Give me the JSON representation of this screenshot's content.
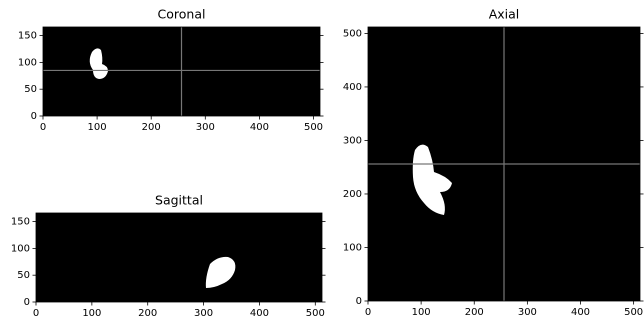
{
  "chart_data": [
    {
      "type": "image",
      "title": "Coronal",
      "xlim": [
        0,
        512
      ],
      "ylim": [
        0,
        166
      ],
      "xticks": [
        0,
        100,
        200,
        300,
        400,
        500
      ],
      "yticks": [
        0,
        50,
        100,
        150
      ],
      "crosshair": {
        "x": 256,
        "y": 85
      }
    },
    {
      "type": "image",
      "title": "Sagittal",
      "xlim": [
        0,
        512
      ],
      "ylim": [
        0,
        166
      ],
      "xticks": [
        0,
        100,
        200,
        300,
        400,
        500
      ],
      "yticks": [
        0,
        50,
        100,
        150
      ]
    },
    {
      "type": "image",
      "title": "Axial",
      "xlim": [
        0,
        512
      ],
      "ylim": [
        0,
        512
      ],
      "xticks": [
        0,
        100,
        200,
        300,
        400,
        500
      ],
      "yticks": [
        0,
        100,
        200,
        300,
        400,
        500
      ],
      "crosshair": {
        "x": 256,
        "y": 256
      }
    }
  ]
}
